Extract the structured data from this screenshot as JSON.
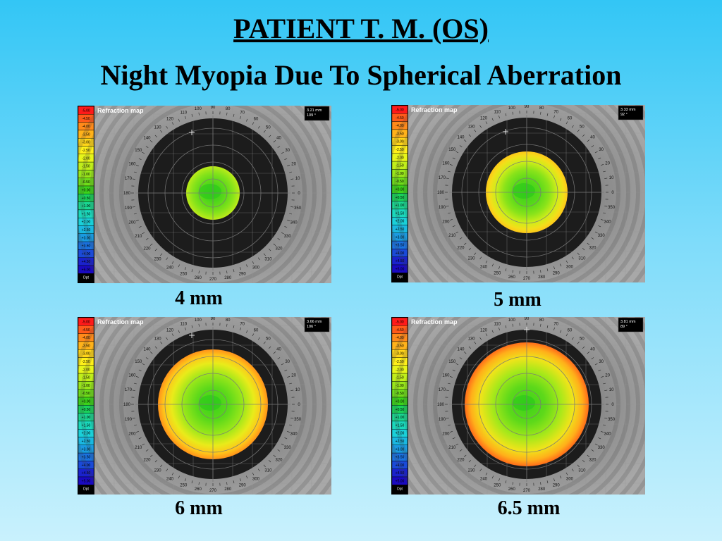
{
  "title": "PATIENT T. M. (OS)",
  "subtitle": "Night Myopia Due To Spherical Aberration",
  "colors": {
    "background_top": "#33c6f5",
    "background_bottom": "#c9f1fd",
    "pupil": "#1a1a1a",
    "iris": "#8a8a8a"
  },
  "scale": {
    "labels": [
      "-5.00",
      "-4.50",
      "-4.00",
      "-3.50",
      "-3.00",
      "-2.50",
      "-2.00",
      "-1.50",
      "-1.00",
      "-0.50",
      "+0.00",
      "+0.50",
      "+1.00",
      "+1.50",
      "+2.00",
      "+2.50",
      "+3.00",
      "+3.50",
      "+4.00",
      "+4.50",
      "+5.00"
    ],
    "colors": [
      "#ff1a1a",
      "#ff5a1a",
      "#ff8a1a",
      "#ffb21a",
      "#ffd51a",
      "#fff01a",
      "#e6f51a",
      "#c0ee1a",
      "#98e61a",
      "#6fdc1a",
      "#3cd21a",
      "#1ad25a",
      "#1ad690",
      "#1ad8bb",
      "#1ad0d8",
      "#1ab8e0",
      "#1a9ae0",
      "#1a72e0",
      "#1a4ad8",
      "#1a22cc",
      "#1a0ac0"
    ],
    "unit": "Dpt"
  },
  "map_header": "Refraction map",
  "degree_labels": [
    "90",
    "80",
    "70",
    "60",
    "50",
    "40",
    "30",
    "20",
    "10",
    "0",
    "350",
    "340",
    "330",
    "320",
    "310",
    "300",
    "290",
    "280",
    "270",
    "260",
    "250",
    "240",
    "230",
    "220",
    "210",
    "200",
    "190",
    "180",
    "170",
    "160",
    "150",
    "140",
    "130",
    "120",
    "110",
    "100"
  ],
  "panels": [
    {
      "caption": "4 mm",
      "info_line1": "3.21 mm",
      "info_line2": "109 °",
      "pupil_mm": 4.0,
      "edge_level": 0.3
    },
    {
      "caption": "5 mm",
      "info_line1": "3.33 mm",
      "info_line2": "92 °",
      "pupil_mm": 5.0,
      "edge_level": 0.62
    },
    {
      "caption": "6 mm",
      "info_line1": "3.66 mm",
      "info_line2": "106 °",
      "pupil_mm": 6.0,
      "edge_level": 0.78
    },
    {
      "caption": "6.5 mm",
      "info_line1": "3.81 mm",
      "info_line2": "89 °",
      "pupil_mm": 6.5,
      "edge_level": 0.86
    }
  ]
}
